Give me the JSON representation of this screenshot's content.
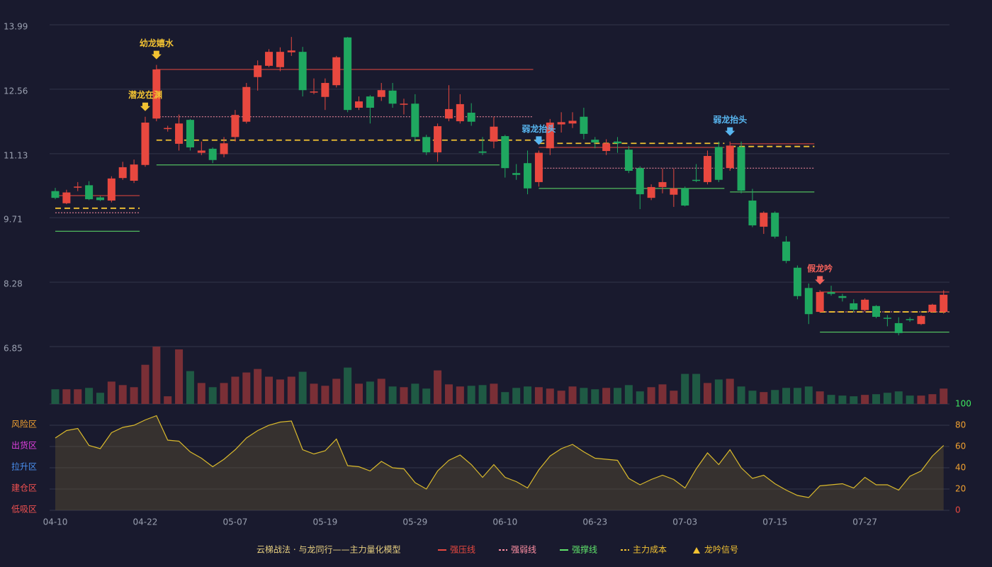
{
  "chart_data": {
    "type": "candlestick",
    "categories": [
      "04-10",
      null,
      null,
      null,
      null,
      null,
      null,
      null,
      "04-22",
      null,
      null,
      null,
      null,
      null,
      null,
      null,
      "05-07",
      null,
      null,
      null,
      null,
      null,
      null,
      null,
      "05-19",
      null,
      null,
      null,
      null,
      null,
      null,
      null,
      "05-29",
      null,
      null,
      null,
      null,
      null,
      null,
      null,
      "06-10",
      null,
      null,
      null,
      null,
      null,
      null,
      null,
      "06-23",
      null,
      null,
      null,
      null,
      null,
      null,
      null,
      "07-03",
      null,
      null,
      null,
      null,
      null,
      null,
      null,
      "07-15",
      null,
      null,
      null,
      null,
      null,
      null,
      null,
      "07-27",
      null,
      null,
      null,
      null,
      null,
      null,
      null
    ],
    "ohlc": [
      [
        10.3,
        10.37,
        10.12,
        10.15
      ],
      [
        10.03,
        10.33,
        10.01,
        10.27
      ],
      [
        10.38,
        10.5,
        10.3,
        10.4
      ],
      [
        10.43,
        10.52,
        10.1,
        10.12
      ],
      [
        10.16,
        10.19,
        10.08,
        10.1
      ],
      [
        10.09,
        10.63,
        10.05,
        10.58
      ],
      [
        10.59,
        10.95,
        10.55,
        10.83
      ],
      [
        10.53,
        11.0,
        10.48,
        10.89
      ],
      [
        10.88,
        11.95,
        10.84,
        11.82
      ],
      [
        11.91,
        13.1,
        11.85,
        13.0
      ],
      [
        11.69,
        11.75,
        11.62,
        11.7
      ],
      [
        11.35,
        12.0,
        11.2,
        11.8
      ],
      [
        11.88,
        11.9,
        11.2,
        11.27
      ],
      [
        11.15,
        11.4,
        11.1,
        11.2
      ],
      [
        11.24,
        11.27,
        10.92,
        10.99
      ],
      [
        11.12,
        11.5,
        11.05,
        11.36
      ],
      [
        11.5,
        12.1,
        11.4,
        11.99
      ],
      [
        11.84,
        12.7,
        11.8,
        12.61
      ],
      [
        12.83,
        13.2,
        12.53,
        13.09
      ],
      [
        13.08,
        13.45,
        13.05,
        13.39
      ],
      [
        13.05,
        13.49,
        12.96,
        13.39
      ],
      [
        13.38,
        13.72,
        13.3,
        13.42
      ],
      [
        13.39,
        13.5,
        12.4,
        12.54
      ],
      [
        12.49,
        12.8,
        12.45,
        12.51
      ],
      [
        12.39,
        12.8,
        12.1,
        12.7
      ],
      [
        12.65,
        13.3,
        12.6,
        13.27
      ],
      [
        13.71,
        13.72,
        12.05,
        12.1
      ],
      [
        12.15,
        12.4,
        12.1,
        12.29
      ],
      [
        12.4,
        12.43,
        11.8,
        12.15
      ],
      [
        12.39,
        12.7,
        12.3,
        12.54
      ],
      [
        12.53,
        12.7,
        12.15,
        12.24
      ],
      [
        12.22,
        12.35,
        12.0,
        12.24
      ],
      [
        12.24,
        12.45,
        11.4,
        11.5
      ],
      [
        11.5,
        11.55,
        11.1,
        11.16
      ],
      [
        11.16,
        11.8,
        10.95,
        11.74
      ],
      [
        11.91,
        12.65,
        11.85,
        12.12
      ],
      [
        11.85,
        12.45,
        11.8,
        12.23
      ],
      [
        12.04,
        12.25,
        11.75,
        11.84
      ],
      [
        11.18,
        11.5,
        11.1,
        11.15
      ],
      [
        11.4,
        11.95,
        11.25,
        11.73
      ],
      [
        11.52,
        11.55,
        10.6,
        10.81
      ],
      [
        10.7,
        10.9,
        10.55,
        10.66
      ],
      [
        10.92,
        11.2,
        10.23,
        10.36
      ],
      [
        10.5,
        11.2,
        10.4,
        11.15
      ],
      [
        11.25,
        11.9,
        11.1,
        11.82
      ],
      [
        11.78,
        12.05,
        11.6,
        11.83
      ],
      [
        11.8,
        12.05,
        11.7,
        11.86
      ],
      [
        11.95,
        12.15,
        11.45,
        11.57
      ],
      [
        11.44,
        11.5,
        11.25,
        11.38
      ],
      [
        11.19,
        11.45,
        11.1,
        11.36
      ],
      [
        11.4,
        11.5,
        11.15,
        11.36
      ],
      [
        11.22,
        11.3,
        10.7,
        10.75
      ],
      [
        10.81,
        10.85,
        9.9,
        10.23
      ],
      [
        10.15,
        10.45,
        10.1,
        10.39
      ],
      [
        10.39,
        10.8,
        10.25,
        10.5
      ],
      [
        10.22,
        10.8,
        9.95,
        10.36
      ],
      [
        10.36,
        10.4,
        9.96,
        9.98
      ],
      [
        10.55,
        10.9,
        10.5,
        10.53
      ],
      [
        10.5,
        11.2,
        10.45,
        11.08
      ],
      [
        11.28,
        11.4,
        10.5,
        10.55
      ],
      [
        10.81,
        11.4,
        10.75,
        11.31
      ],
      [
        11.28,
        11.4,
        10.25,
        10.31
      ],
      [
        10.09,
        10.35,
        9.5,
        9.54
      ],
      [
        9.51,
        9.85,
        9.35,
        9.82
      ],
      [
        9.82,
        9.85,
        9.25,
        9.29
      ],
      [
        9.18,
        9.3,
        8.7,
        8.75
      ],
      [
        8.6,
        8.65,
        7.9,
        7.97
      ],
      [
        8.15,
        8.25,
        7.35,
        7.57
      ],
      [
        7.62,
        8.1,
        7.6,
        8.06
      ],
      [
        8.06,
        8.2,
        7.98,
        8.02
      ],
      [
        7.97,
        8.02,
        7.85,
        7.93
      ],
      [
        7.81,
        7.9,
        7.62,
        7.67
      ],
      [
        7.66,
        7.92,
        7.63,
        7.89
      ],
      [
        7.75,
        7.77,
        7.48,
        7.51
      ],
      [
        7.49,
        7.55,
        7.3,
        7.48
      ],
      [
        7.37,
        7.5,
        7.1,
        7.15
      ],
      [
        7.46,
        7.5,
        7.4,
        7.45
      ],
      [
        7.35,
        7.55,
        7.33,
        7.53
      ],
      [
        7.62,
        7.8,
        7.6,
        7.78
      ],
      [
        7.62,
        8.1,
        7.58,
        8.0
      ]
    ],
    "up_color": "#e8483f",
    "down_color": "#1fa860",
    "ylim": [
      6.85,
      13.99
    ],
    "yticks": [
      6.85,
      8.28,
      9.71,
      11.13,
      12.56,
      13.99
    ],
    "grid": true,
    "volume": [
      21,
      21,
      21,
      23,
      16,
      32,
      27,
      24,
      56,
      82,
      11,
      78,
      47,
      30,
      24,
      30,
      39,
      45,
      50,
      39,
      35,
      39,
      46,
      29,
      26,
      36,
      52,
      29,
      32,
      36,
      25,
      24,
      29,
      22,
      48,
      28,
      25,
      26,
      27,
      29,
      17,
      23,
      25,
      24,
      22,
      19,
      25,
      23,
      21,
      23,
      23,
      27,
      18,
      24,
      28,
      19,
      43,
      43,
      30,
      35,
      36,
      25,
      19,
      17,
      20,
      23,
      23,
      25,
      18,
      13,
      12,
      11,
      13,
      14,
      16,
      18,
      12,
      12,
      14,
      22
    ],
    "levels": [
      {
        "name": "强压线",
        "color": "#e8483f",
        "style": "solid",
        "segments": [
          {
            "start": 0,
            "end": 7,
            "value": 10.2
          },
          {
            "start": 9,
            "end": 42,
            "value": 13.0
          },
          {
            "start": 43,
            "end": 59,
            "value": 11.27
          },
          {
            "start": 60,
            "end": 67,
            "value": 11.35
          },
          {
            "start": 68,
            "end": 79,
            "value": 8.06
          }
        ]
      },
      {
        "name": "强弱线",
        "color": "#ff8fa3",
        "style": "dotted",
        "segments": [
          {
            "start": 0,
            "end": 7,
            "value": 9.82
          },
          {
            "start": 9,
            "end": 42,
            "value": 11.95
          },
          {
            "start": 43,
            "end": 59,
            "value": 10.81
          },
          {
            "start": 60,
            "end": 67,
            "value": 10.81
          },
          {
            "start": 68,
            "end": 79,
            "value": 7.62
          }
        ]
      },
      {
        "name": "强撑线",
        "color": "#5fe36a",
        "style": "solid",
        "segments": [
          {
            "start": 0,
            "end": 7,
            "value": 9.41
          },
          {
            "start": 9,
            "end": 39,
            "value": 10.88
          },
          {
            "start": 43,
            "end": 59,
            "value": 10.36
          },
          {
            "start": 60,
            "end": 67,
            "value": 10.28
          },
          {
            "start": 68,
            "end": 79,
            "value": 7.17
          }
        ]
      },
      {
        "name": "主力成本",
        "color": "#f2c232",
        "style": "dashed",
        "segments": [
          {
            "start": 0,
            "end": 7,
            "value": 9.92
          },
          {
            "start": 9,
            "end": 43,
            "value": 11.43
          },
          {
            "start": 43,
            "end": 59,
            "value": 11.36
          },
          {
            "start": 60,
            "end": 67,
            "value": 11.29
          },
          {
            "start": 68,
            "end": 79,
            "value": 7.62
          }
        ]
      }
    ],
    "signals": [
      {
        "index": 8,
        "label": "潜龙在渊",
        "color": "#f2c232"
      },
      {
        "index": 9,
        "label": "幼龙嬉水",
        "color": "#f2c232"
      },
      {
        "index": 43,
        "label": "弱龙抬头",
        "color": "#58b6f0"
      },
      {
        "index": 60,
        "label": "弱龙抬头",
        "color": "#58b6f0"
      },
      {
        "index": 68,
        "label": "假龙吟",
        "color": "#f0605a"
      }
    ],
    "oscillator": {
      "values": [
        68,
        75,
        77,
        61,
        58,
        73,
        78,
        80,
        85,
        89,
        66,
        65,
        55,
        49,
        41,
        48,
        57,
        68,
        75,
        80,
        83,
        84,
        57,
        53,
        56,
        67,
        42,
        41,
        37,
        46,
        40,
        39,
        26,
        20,
        37,
        47,
        52,
        43,
        31,
        43,
        31,
        27,
        21,
        38,
        51,
        58,
        62,
        55,
        49,
        48,
        47,
        30,
        24,
        29,
        33,
        29,
        21,
        39,
        54,
        43,
        57,
        40,
        30,
        33,
        25,
        19,
        14,
        12,
        23,
        24,
        25,
        21,
        31,
        24,
        24,
        19,
        32,
        37,
        51,
        61
      ],
      "color": "#d9b92c",
      "ylim": [
        0,
        100
      ],
      "yticks": [
        0,
        20,
        40,
        60,
        80,
        100
      ],
      "ytick_colors": [
        "#e8483f",
        "#f0a030",
        "#f0a030",
        "#f0a030",
        "#f0a030",
        "#3ee860"
      ],
      "zones": [
        {
          "label": "风险区",
          "value": 80,
          "color": "#f0a030"
        },
        {
          "label": "出货区",
          "value": 60,
          "color": "#e040e0"
        },
        {
          "label": "拉升区",
          "value": 40,
          "color": "#4a90f0"
        },
        {
          "label": "建仓区",
          "value": 20,
          "color": "#f05050"
        },
        {
          "label": "低吸区",
          "value": 0,
          "color": "#f05050"
        }
      ]
    },
    "legend": {
      "title": "云梯战法 · 与龙同行——主力量化模型",
      "title_color": "#e8d080",
      "signal_name": "龙吟信号",
      "signal_color": "#f2c232"
    }
  }
}
